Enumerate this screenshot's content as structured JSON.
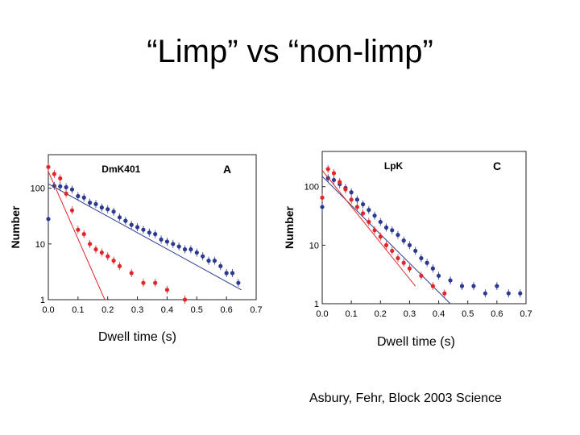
{
  "slide": {
    "title": "“Limp” vs “non-limp”",
    "xcaption_left": "Dwell time (s)",
    "xcaption_right": "Dwell time (s)",
    "citation": "Asbury, Fehr, Block 2003 Science"
  },
  "chart_data": [
    {
      "type": "scatter",
      "title": "DmK401",
      "panel_label": "A",
      "xlabel": "",
      "ylabel": "Number",
      "yscale": "log",
      "xlim": [
        0,
        0.7
      ],
      "ylim": [
        1,
        400
      ],
      "xticks": [
        "0.0",
        "0.1",
        "0.2",
        "0.3",
        "0.4",
        "0.5",
        "0.6",
        "0.7"
      ],
      "yticks": [
        "1",
        "10",
        "100"
      ],
      "colors": {
        "blue": "#2b3a8f",
        "red": "#e0262b"
      },
      "series": [
        {
          "color": "blue",
          "x": [
            0.0,
            0.02,
            0.04,
            0.06,
            0.08,
            0.1,
            0.12,
            0.14,
            0.16,
            0.18,
            0.2,
            0.22,
            0.24,
            0.26,
            0.28,
            0.3,
            0.32,
            0.34,
            0.36,
            0.38,
            0.4,
            0.42,
            0.44,
            0.46,
            0.48,
            0.5,
            0.52,
            0.54,
            0.56,
            0.58,
            0.6,
            0.62,
            0.64
          ],
          "y": [
            28,
            110,
            108,
            104,
            95,
            72,
            68,
            55,
            52,
            45,
            42,
            38,
            30,
            26,
            22,
            20,
            18,
            16,
            15,
            12,
            11,
            10,
            9,
            8,
            8,
            7,
            6,
            5,
            5,
            4,
            3,
            3,
            2
          ],
          "fit": {
            "x": [
              0.0,
              0.65
            ],
            "y": [
              120,
              1.5
            ]
          }
        },
        {
          "color": "red",
          "x": [
            0.0,
            0.02,
            0.04,
            0.06,
            0.08,
            0.1,
            0.12,
            0.14,
            0.16,
            0.18,
            0.2,
            0.22,
            0.24,
            0.28,
            0.32,
            0.36,
            0.4,
            0.46
          ],
          "y": [
            240,
            180,
            150,
            80,
            40,
            18,
            15,
            10,
            8,
            7,
            6,
            5,
            4,
            3,
            2,
            2,
            1.5,
            1
          ],
          "fit": {
            "x": [
              0.0,
              0.19
            ],
            "y": [
              200,
              1
            ]
          }
        }
      ]
    },
    {
      "type": "scatter",
      "title": "LpK",
      "panel_label": "C",
      "xlabel": "",
      "ylabel": "Number",
      "yscale": "log",
      "xlim": [
        0,
        0.7
      ],
      "ylim": [
        1,
        400
      ],
      "xticks": [
        "0.0",
        "0.1",
        "0.2",
        "0.3",
        "0.4",
        "0.5",
        "0.6",
        "0.7"
      ],
      "yticks": [
        "1",
        "10",
        "100"
      ],
      "colors": {
        "blue": "#2b3a8f",
        "red": "#e0262b"
      },
      "series": [
        {
          "color": "blue",
          "x": [
            0.0,
            0.02,
            0.04,
            0.06,
            0.08,
            0.1,
            0.12,
            0.14,
            0.16,
            0.18,
            0.2,
            0.22,
            0.24,
            0.26,
            0.28,
            0.3,
            0.32,
            0.34,
            0.36,
            0.38,
            0.4,
            0.44,
            0.48,
            0.52,
            0.56,
            0.6,
            0.64,
            0.68
          ],
          "y": [
            45,
            140,
            130,
            110,
            95,
            80,
            60,
            50,
            40,
            32,
            25,
            20,
            18,
            15,
            12,
            10,
            8,
            6,
            5,
            4,
            3,
            2.5,
            2,
            2,
            1.5,
            2,
            1.5,
            1.5
          ],
          "fit": {
            "x": [
              0.0,
              0.44
            ],
            "y": [
              150,
              1
            ]
          }
        },
        {
          "color": "red",
          "x": [
            0.0,
            0.02,
            0.04,
            0.06,
            0.08,
            0.1,
            0.12,
            0.14,
            0.16,
            0.18,
            0.2,
            0.22,
            0.24,
            0.26,
            0.28,
            0.3,
            0.34,
            0.38,
            0.42
          ],
          "y": [
            65,
            200,
            170,
            120,
            90,
            60,
            45,
            35,
            25,
            18,
            14,
            10,
            8,
            6,
            5,
            4,
            3,
            2,
            1.5
          ],
          "fit": {
            "x": [
              0.0,
              0.32
            ],
            "y": [
              190,
              2
            ]
          }
        }
      ]
    }
  ]
}
